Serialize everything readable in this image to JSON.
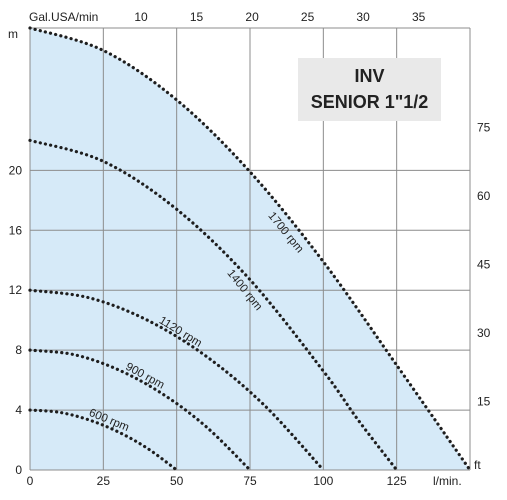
{
  "chart_data": {
    "type": "line",
    "title": [
      "INV",
      "SENIOR 1\"1/2"
    ],
    "x_axis": {
      "label": "l/min.",
      "range": [
        0,
        150
      ],
      "ticks": [
        0,
        25,
        50,
        75,
        100,
        125
      ]
    },
    "x_axis_top": {
      "label": "Gal.USA/min",
      "ticks": [
        10,
        15,
        20,
        25,
        30,
        35
      ]
    },
    "y_axis": {
      "label": "m",
      "range": [
        0,
        29.5
      ],
      "ticks": [
        0,
        4,
        8,
        12,
        16,
        20
      ]
    },
    "y_axis_right": {
      "label": "ft",
      "ticks": [
        15,
        30,
        45,
        60,
        75
      ]
    },
    "grid": true,
    "fill_color": "#d6eaf8",
    "series": [
      {
        "name": "600 rpm",
        "x": [
          0,
          10,
          20,
          30,
          40,
          50
        ],
        "y": [
          4.0,
          3.85,
          3.35,
          2.55,
          1.45,
          0
        ]
      },
      {
        "name": "900 rpm",
        "x": [
          0,
          15,
          30,
          45,
          60,
          75
        ],
        "y": [
          8.0,
          7.7,
          6.7,
          5.1,
          2.9,
          0
        ]
      },
      {
        "name": "1120 rpm",
        "x": [
          0,
          20,
          40,
          60,
          80,
          100
        ],
        "y": [
          12.0,
          11.5,
          10.0,
          7.6,
          4.3,
          0
        ]
      },
      {
        "name": "1400 rpm",
        "x": [
          0,
          25,
          50,
          75,
          100,
          112,
          125
        ],
        "y": [
          22.0,
          20.6,
          17.4,
          12.7,
          6.6,
          3.3,
          0
        ]
      },
      {
        "name": "1700 rpm",
        "x": [
          0,
          25,
          50,
          75,
          100,
          125,
          150
        ],
        "y": [
          29.5,
          28.0,
          24.7,
          19.9,
          13.9,
          7.0,
          0
        ]
      }
    ]
  }
}
